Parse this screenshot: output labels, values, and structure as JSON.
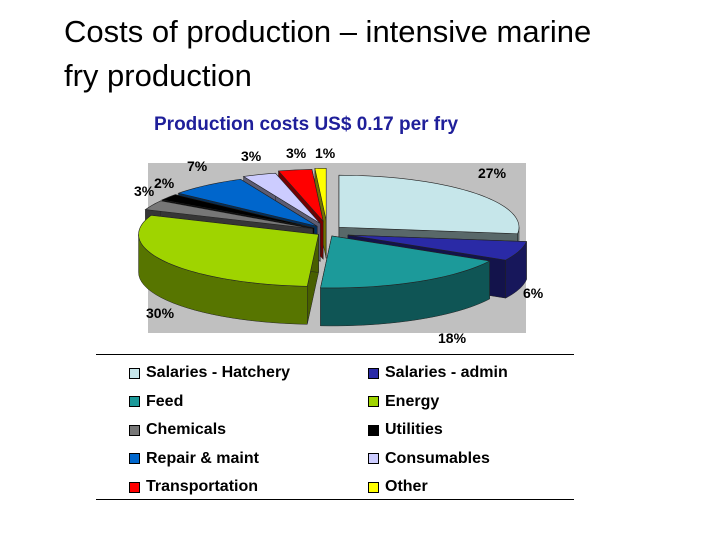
{
  "slide": {
    "title_line1": "Costs of production – intensive marine",
    "title_line2": "fry production"
  },
  "chart_data": {
    "type": "pie",
    "title": "Production costs US$ 0.17 per fry",
    "plot_background": "#c0c0c0",
    "slices": [
      {
        "name": "Salaries - Hatchery",
        "value": 27,
        "label": "27%",
        "color": "#c6e6ea"
      },
      {
        "name": "Salaries - admin",
        "value": 6,
        "label": "6%",
        "color": "#2a2aa6"
      },
      {
        "name": "Feed",
        "value": 18,
        "label": "18%",
        "color": "#1c9a9a"
      },
      {
        "name": "Energy",
        "value": 30,
        "label": "30%",
        "color": "#9fd400"
      },
      {
        "name": "Chemicals",
        "value": 3,
        "label": "3%",
        "color": "#777777"
      },
      {
        "name": "Utilities",
        "value": 2,
        "label": "2%",
        "color": "#000000"
      },
      {
        "name": "Repair & maint",
        "value": 7,
        "label": "7%",
        "color": "#0066cc"
      },
      {
        "name": "Consumables",
        "value": 3,
        "label": "3%",
        "color": "#ccccff"
      },
      {
        "name": "Transportation",
        "value": 3,
        "label": "3%",
        "color": "#ff0000"
      },
      {
        "name": "Other",
        "value": 1,
        "label": "1%",
        "color": "#ffff00"
      }
    ],
    "legend": [
      "Salaries - Hatchery",
      "Salaries - admin",
      "Feed",
      "Energy",
      "Chemicals",
      "Utilities",
      "Repair & maint",
      "Consumables",
      "Transportation",
      "Other"
    ],
    "legend_position": "bottom"
  }
}
